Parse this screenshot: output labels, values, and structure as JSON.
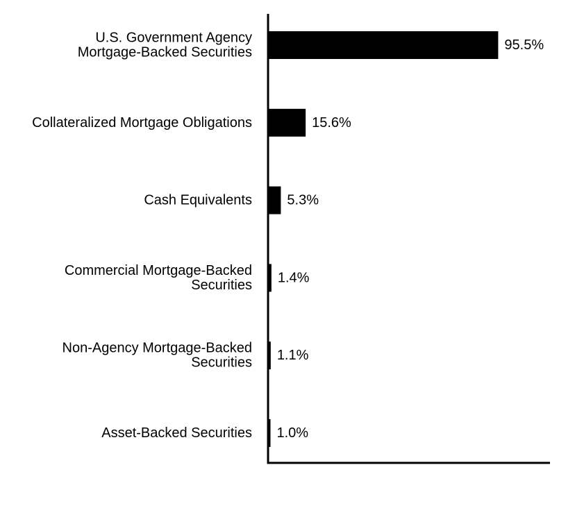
{
  "chart_data": {
    "type": "bar",
    "orientation": "horizontal",
    "categories": [
      [
        "U.S. Government Agency",
        "Mortgage-Backed Securities"
      ],
      [
        "Collateralized Mortgage Obligations"
      ],
      [
        "Cash Equivalents"
      ],
      [
        "Commercial Mortgage-Backed",
        "Securities"
      ],
      [
        "Non-Agency Mortgage-Backed",
        "Securities"
      ],
      [
        "Asset-Backed Securities"
      ]
    ],
    "values": [
      95.5,
      15.6,
      5.3,
      1.4,
      1.1,
      1.0
    ],
    "value_labels": [
      "95.5%",
      "15.6%",
      "5.3%",
      "1.4%",
      "1.1%",
      "1.0%"
    ],
    "xlim": [
      0,
      117
    ],
    "bar_color": "#000000",
    "axis_color": "#000000",
    "grid": false,
    "legend": "none"
  }
}
